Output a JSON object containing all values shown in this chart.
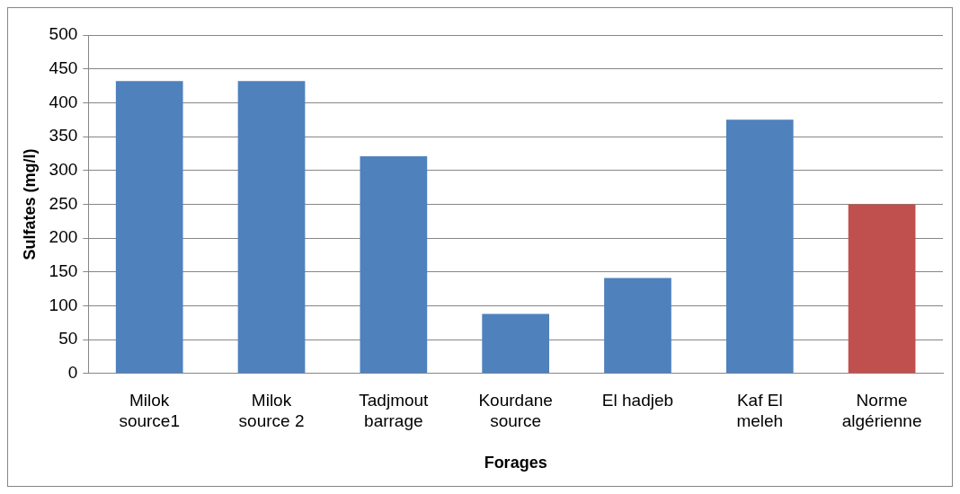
{
  "chart_data": {
    "type": "bar",
    "xlabel": "Forages",
    "ylabel": "Sulfates (mg/l)",
    "categories": [
      "Milok source1",
      "Milok source 2",
      "Tadjmout barrage",
      "Kourdane source",
      "El hadjeb",
      "Kaf El meleh",
      "Norme algérienne"
    ],
    "values": [
      432,
      432,
      321,
      88,
      141,
      375,
      250
    ],
    "colors": [
      "#4f81bd",
      "#4f81bd",
      "#4f81bd",
      "#4f81bd",
      "#4f81bd",
      "#4f81bd",
      "#c0504d"
    ],
    "ylim": [
      0,
      500
    ],
    "yticks": [
      0,
      50,
      100,
      150,
      200,
      250,
      300,
      350,
      400,
      450,
      500
    ],
    "grid": "y",
    "legend": false
  }
}
